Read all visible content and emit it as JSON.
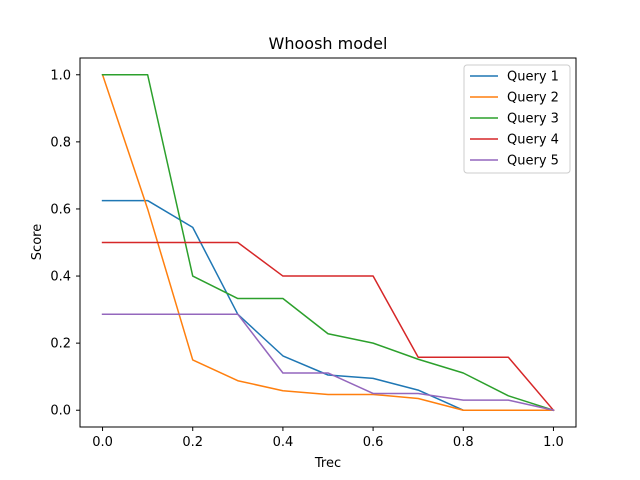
{
  "chart_data": {
    "type": "line",
    "title": "Whoosh model",
    "xlabel": "Trec",
    "ylabel": "Score",
    "xlim": [
      -0.05,
      1.05
    ],
    "ylim": [
      -0.05,
      1.05
    ],
    "x": [
      0.0,
      0.1,
      0.2,
      0.3,
      0.4,
      0.5,
      0.6,
      0.7,
      0.8,
      0.9,
      1.0
    ],
    "x_ticks": [
      "0.0",
      "0.2",
      "0.4",
      "0.6",
      "0.8",
      "1.0"
    ],
    "y_ticks": [
      "0.0",
      "0.2",
      "0.4",
      "0.6",
      "0.8",
      "1.0"
    ],
    "grid": false,
    "legend_position": "top-right",
    "series": [
      {
        "name": "Query 1",
        "color": "#1f77b4",
        "values": [
          0.625,
          0.625,
          0.545,
          0.286,
          0.162,
          0.105,
          0.095,
          0.06,
          0.0,
          0.0,
          0.0
        ]
      },
      {
        "name": "Query 2",
        "color": "#ff7f0e",
        "values": [
          1.0,
          0.6,
          0.15,
          0.088,
          0.058,
          0.047,
          0.047,
          0.035,
          0.0,
          0.0,
          0.0
        ]
      },
      {
        "name": "Query 3",
        "color": "#2ca02c",
        "values": [
          1.0,
          1.0,
          0.4,
          0.333,
          0.333,
          0.228,
          0.2,
          0.152,
          0.111,
          0.043,
          0.0
        ]
      },
      {
        "name": "Query 4",
        "color": "#d62728",
        "values": [
          0.5,
          0.5,
          0.5,
          0.5,
          0.4,
          0.4,
          0.4,
          0.158,
          0.158,
          0.158,
          0.0
        ]
      },
      {
        "name": "Query 5",
        "color": "#9467bd",
        "values": [
          0.286,
          0.286,
          0.286,
          0.286,
          0.111,
          0.111,
          0.05,
          0.05,
          0.03,
          0.03,
          0.0
        ]
      }
    ]
  }
}
